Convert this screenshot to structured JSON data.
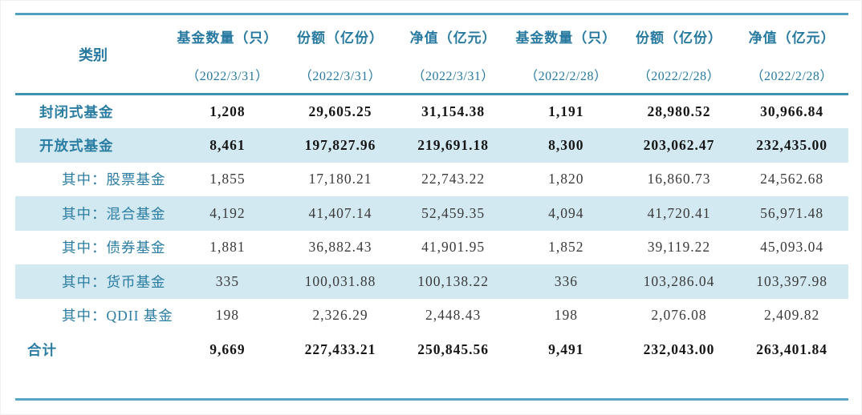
{
  "chart_data": {
    "type": "table",
    "category_header": "类别",
    "columns": [
      {
        "label": "基金数量（只）",
        "period": "（2022/3/31）"
      },
      {
        "label": "份额（亿份）",
        "period": "（2022/3/31）"
      },
      {
        "label": "净值（亿元）",
        "period": "（2022/3/31）"
      },
      {
        "label": "基金数量（只）",
        "period": "（2022/2/28）"
      },
      {
        "label": "份额（亿份）",
        "period": "（2022/2/28）"
      },
      {
        "label": "净值（亿元）",
        "period": "（2022/2/28）"
      }
    ],
    "rows": [
      {
        "category": "封闭式基金",
        "values": [
          "1,208",
          "29,605.25",
          "31,154.38",
          "1,191",
          "28,980.52",
          "30,966.84"
        ]
      },
      {
        "category": "开放式基金",
        "values": [
          "8,461",
          "197,827.96",
          "219,691.18",
          "8,300",
          "203,062.47",
          "232,435.00"
        ]
      },
      {
        "category": "其中：股票基金",
        "values": [
          "1,855",
          "17,180.21",
          "22,743.22",
          "1,820",
          "16,860.73",
          "24,562.68"
        ]
      },
      {
        "category": "其中：混合基金",
        "values": [
          "4,192",
          "41,407.14",
          "52,459.35",
          "4,094",
          "41,720.41",
          "56,971.48"
        ]
      },
      {
        "category": "其中：债券基金",
        "values": [
          "1,881",
          "36,882.43",
          "41,901.95",
          "1,852",
          "39,119.22",
          "45,093.04"
        ]
      },
      {
        "category": "其中：货币基金",
        "values": [
          "335",
          "100,031.88",
          "100,138.22",
          "336",
          "103,286.04",
          "103,397.98"
        ]
      },
      {
        "category": "其中：QDII 基金",
        "values": [
          "198",
          "2,326.29",
          "2,448.43",
          "198",
          "2,076.08",
          "2,409.82"
        ]
      },
      {
        "category": "合计",
        "values": [
          "9,669",
          "227,433.21",
          "250,845.56",
          "9,491",
          "232,043.00",
          "263,401.84"
        ]
      }
    ]
  },
  "colors": {
    "accent_rule_top": "#4e9fc0",
    "accent_rule_header": "#3e93b5",
    "accent_rule_bottom": "#58a6c6",
    "row_highlight": "#d2e9f1",
    "heading_text": "#27799f",
    "category_text": "#2b7da2",
    "value_text": "#3a3a3a",
    "value_text_emphasis": "#161616"
  }
}
